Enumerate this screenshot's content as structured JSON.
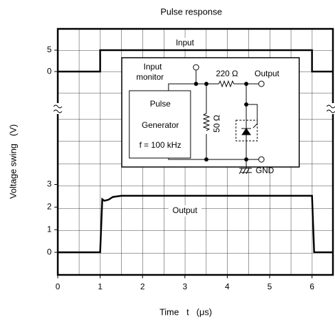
{
  "chart_data": [
    {
      "type": "line",
      "title": "Pulse response",
      "x_label": "Time   t   (μs)",
      "y_label": "Voltage swing   (V)",
      "xlim": [
        0,
        6.5
      ],
      "ylim": [
        -9,
        10
      ],
      "yticks": [
        0,
        5
      ],
      "x": [
        0,
        1,
        1,
        6,
        6,
        6.5
      ],
      "series": [
        {
          "name": "Input",
          "color": "#000000",
          "values": [
            0,
            0,
            5,
            5,
            0,
            0
          ]
        }
      ]
    },
    {
      "type": "line",
      "xlim": [
        0,
        6.5
      ],
      "xticks": [
        0,
        1,
        2,
        3,
        4,
        5,
        6
      ],
      "ylim": [
        -1,
        6.3
      ],
      "yticks": [
        0,
        1,
        2,
        3
      ],
      "x": [
        0,
        1,
        1.05,
        1.1,
        1.2,
        1.3,
        1.5,
        6,
        6.05,
        6.5
      ],
      "series": [
        {
          "name": "Output",
          "color": "#000000",
          "values": [
            0,
            0,
            2.35,
            2.28,
            2.33,
            2.45,
            2.5,
            2.5,
            0,
            0
          ]
        }
      ]
    }
  ],
  "circuit": {
    "input_monitor": [
      "Input",
      "monitor"
    ],
    "resistor_series": "220 Ω",
    "output": "Output",
    "generator": [
      "Pulse",
      "Generator",
      "f = 100 kHz"
    ],
    "resistor_shunt": "50 Ω",
    "ground": "GND"
  }
}
